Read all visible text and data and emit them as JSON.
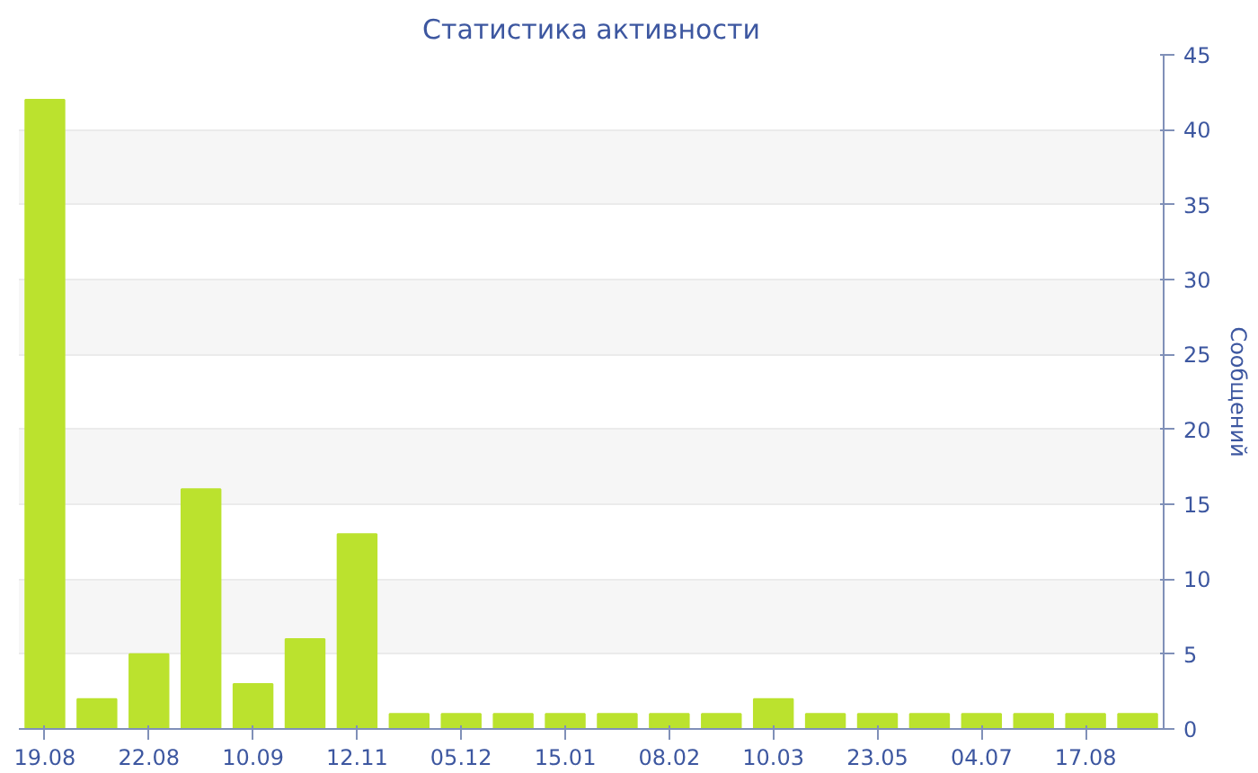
{
  "chart_data": {
    "type": "bar",
    "title": "Статистика активности",
    "ylabel": "Сообщений",
    "categories": [
      "19.08",
      null,
      "22.08",
      null,
      "10.09",
      null,
      "12.11",
      null,
      "05.12",
      null,
      "15.01",
      null,
      "08.02",
      null,
      "10.03",
      null,
      "23.05",
      null,
      "04.07",
      null,
      "17.08",
      null
    ],
    "values": [
      42,
      2,
      5,
      16,
      3,
      6,
      13,
      1,
      1,
      1,
      1,
      1,
      1,
      1,
      2,
      1,
      1,
      1,
      1,
      1,
      1,
      1
    ],
    "color": "#bbe22e",
    "ylim": [
      0,
      45
    ],
    "yticks": [
      0,
      5,
      10,
      15,
      20,
      25,
      30,
      35,
      40,
      45
    ],
    "grid": "y"
  }
}
